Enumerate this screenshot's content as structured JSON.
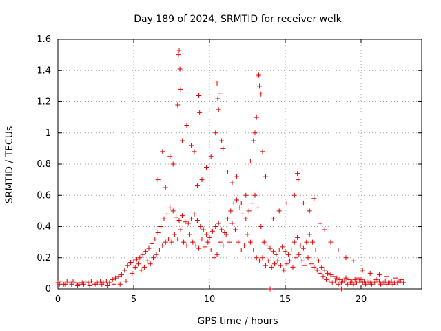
{
  "chart_data": {
    "type": "scatter",
    "title": "Day 189 of 2024, SRMTID for receiver welk",
    "xlabel": "GPS time / hours",
    "ylabel": "SRMTID / TECUs",
    "xlim": [
      0,
      24
    ],
    "ylim": [
      0,
      1.6
    ],
    "xticks": [
      0,
      5,
      10,
      15,
      20
    ],
    "xtick_labels": [
      "0",
      "5",
      "10",
      "15",
      "20"
    ],
    "yticks": [
      0,
      0.2,
      0.4,
      0.6,
      0.8,
      1.0,
      1.2,
      1.4,
      1.6
    ],
    "ytick_labels": [
      "0",
      "0.2",
      "0.4",
      "0.6",
      "0.8",
      "1",
      "1.2",
      "1.4",
      "1.6"
    ],
    "grid": true,
    "marker": "plus",
    "color": "#e00000",
    "series": [
      {
        "name": "SRMTID",
        "x": [
          0.0,
          0.2,
          0.4,
          0.6,
          0.8,
          1.0,
          1.2,
          1.4,
          1.6,
          1.8,
          2.0,
          2.2,
          2.4,
          2.6,
          2.8,
          3.0,
          3.2,
          3.4,
          3.6,
          3.8,
          4.0,
          4.2,
          4.4,
          4.6,
          4.8,
          5.0,
          5.2,
          5.4,
          5.6,
          5.8,
          6.0,
          6.2,
          6.4,
          6.6,
          6.8,
          7.0,
          7.2,
          7.4,
          7.6,
          7.8,
          8.0,
          8.2,
          8.4,
          8.6,
          8.8,
          9.0,
          9.2,
          9.4,
          9.6,
          9.8,
          10.0,
          10.2,
          10.4,
          10.6,
          10.8,
          11.0,
          11.2,
          11.4,
          11.6,
          11.8,
          12.0,
          12.2,
          12.4,
          12.6,
          12.8,
          13.0,
          13.2,
          13.4,
          13.6,
          13.8,
          14.0,
          14.2,
          14.4,
          14.6,
          14.8,
          15.0,
          15.2,
          15.4,
          15.6,
          15.8,
          16.0,
          16.2,
          16.4,
          16.6,
          16.8,
          17.0,
          17.2,
          17.4,
          17.6,
          17.8,
          18.0,
          18.2,
          18.4,
          18.6,
          18.8,
          19.0,
          19.2,
          19.4,
          19.6,
          19.8,
          20.0,
          20.2,
          20.4,
          20.6,
          20.8,
          21.0,
          21.2,
          21.4,
          21.6,
          21.8,
          22.0,
          22.2,
          22.4,
          22.6,
          22.8,
          0.1,
          0.5,
          0.9,
          1.3,
          1.7,
          2.1,
          2.5,
          2.9,
          3.3,
          3.7,
          4.1,
          4.5,
          4.9,
          5.1,
          5.3,
          5.5,
          5.7,
          5.9,
          6.1,
          6.3,
          6.5,
          6.7,
          6.9,
          7.1,
          7.3,
          7.5,
          7.7,
          7.9,
          8.1,
          8.3,
          8.5,
          8.7,
          8.9,
          9.1,
          9.3,
          9.5,
          9.7,
          9.9,
          10.1,
          10.3,
          10.5,
          10.7,
          10.9,
          11.1,
          11.3,
          11.5,
          11.7,
          11.9,
          12.1,
          12.3,
          12.5,
          12.7,
          12.9,
          13.1,
          13.3,
          13.5,
          13.7,
          13.9,
          14.1,
          14.3,
          14.5,
          14.7,
          14.9,
          15.1,
          15.3,
          15.5,
          15.7,
          15.9,
          16.1,
          16.3,
          16.5,
          16.7,
          16.9,
          17.1,
          17.3,
          17.5,
          17.7,
          17.9,
          18.1,
          18.3,
          18.5,
          18.7,
          18.9,
          19.1,
          19.3,
          19.5,
          19.7,
          19.9,
          20.1,
          20.3,
          20.5,
          20.7,
          20.9,
          21.1,
          21.3,
          21.5,
          21.7,
          21.9,
          22.1,
          22.3,
          22.5,
          22.7,
          6.6,
          6.9,
          7.1,
          7.4,
          7.6,
          7.9,
          7.95,
          8.0,
          8.05,
          8.1,
          8.2,
          8.5,
          8.8,
          9.0,
          9.2,
          9.3,
          9.35,
          9.5,
          9.8,
          10.1,
          10.4,
          10.5,
          10.55,
          10.6,
          10.7,
          10.8,
          10.9,
          11.2,
          11.5,
          11.8,
          12.1,
          12.4,
          12.7,
          12.9,
          13.0,
          13.1,
          13.2,
          13.25,
          13.3,
          13.4,
          13.5,
          13.7,
          14.2,
          14.6,
          15.1,
          15.6,
          15.8,
          15.85,
          16.2,
          16.6,
          16.9,
          17.3,
          17.6,
          18.0,
          18.5,
          19.0,
          19.5,
          20.1,
          20.6,
          21.2,
          21.7,
          22.3,
          22.7,
          14.0,
          18.7
        ],
        "y": [
          0.04,
          0.05,
          0.03,
          0.05,
          0.04,
          0.05,
          0.04,
          0.03,
          0.04,
          0.05,
          0.04,
          0.05,
          0.03,
          0.04,
          0.05,
          0.04,
          0.05,
          0.04,
          0.06,
          0.07,
          0.08,
          0.09,
          0.12,
          0.15,
          0.17,
          0.18,
          0.19,
          0.2,
          0.22,
          0.24,
          0.26,
          0.29,
          0.32,
          0.36,
          0.4,
          0.45,
          0.48,
          0.52,
          0.5,
          0.46,
          0.44,
          0.47,
          0.43,
          0.42,
          0.45,
          0.48,
          0.44,
          0.4,
          0.38,
          0.35,
          0.33,
          0.37,
          0.4,
          0.42,
          0.38,
          0.36,
          0.45,
          0.5,
          0.55,
          0.57,
          0.52,
          0.48,
          0.45,
          0.5,
          0.55,
          0.6,
          0.52,
          0.4,
          0.3,
          0.28,
          0.26,
          0.24,
          0.22,
          0.25,
          0.27,
          0.24,
          0.22,
          0.25,
          0.3,
          0.33,
          0.28,
          0.26,
          0.3,
          0.35,
          0.3,
          0.25,
          0.18,
          0.14,
          0.12,
          0.1,
          0.09,
          0.08,
          0.07,
          0.06,
          0.05,
          0.07,
          0.06,
          0.05,
          0.06,
          0.07,
          0.06,
          0.05,
          0.05,
          0.04,
          0.05,
          0.06,
          0.05,
          0.04,
          0.05,
          0.04,
          0.05,
          0.04,
          0.04,
          0.05,
          0.04,
          0.03,
          0.03,
          0.03,
          0.02,
          0.03,
          0.02,
          0.03,
          0.03,
          0.02,
          0.03,
          0.03,
          0.05,
          0.1,
          0.14,
          0.16,
          0.12,
          0.14,
          0.18,
          0.16,
          0.2,
          0.22,
          0.25,
          0.28,
          0.3,
          0.32,
          0.3,
          0.35,
          0.32,
          0.38,
          0.3,
          0.28,
          0.35,
          0.3,
          0.28,
          0.26,
          0.32,
          0.27,
          0.3,
          0.25,
          0.2,
          0.22,
          0.3,
          0.28,
          0.35,
          0.3,
          0.42,
          0.38,
          0.3,
          0.25,
          0.28,
          0.35,
          0.3,
          0.25,
          0.2,
          0.18,
          0.2,
          0.15,
          0.18,
          0.14,
          0.16,
          0.18,
          0.15,
          0.12,
          0.16,
          0.18,
          0.14,
          0.2,
          0.22,
          0.18,
          0.15,
          0.2,
          0.16,
          0.14,
          0.12,
          0.1,
          0.08,
          0.06,
          0.05,
          0.04,
          0.05,
          0.03,
          0.04,
          0.05,
          0.03,
          0.04,
          0.03,
          0.04,
          0.05,
          0.04,
          0.03,
          0.04,
          0.03,
          0.04,
          0.05,
          0.03,
          0.04,
          0.03,
          0.04,
          0.03,
          0.04,
          0.05,
          0.04,
          0.7,
          0.88,
          0.65,
          0.85,
          0.8,
          1.18,
          1.5,
          1.53,
          1.41,
          1.28,
          0.95,
          1.05,
          0.92,
          0.88,
          0.66,
          1.24,
          1.13,
          0.7,
          0.78,
          0.85,
          1.0,
          1.32,
          1.22,
          1.15,
          1.25,
          0.95,
          0.9,
          0.75,
          0.68,
          0.72,
          0.55,
          0.6,
          0.82,
          0.95,
          1.0,
          1.1,
          1.36,
          1.37,
          1.3,
          1.25,
          0.88,
          0.72,
          0.45,
          0.5,
          0.55,
          0.6,
          0.74,
          0.7,
          0.55,
          0.5,
          0.58,
          0.42,
          0.38,
          0.3,
          0.25,
          0.2,
          0.18,
          0.12,
          0.1,
          0.09,
          0.08,
          0.07,
          0.06,
          0.0,
          0.0
        ]
      }
    ]
  }
}
